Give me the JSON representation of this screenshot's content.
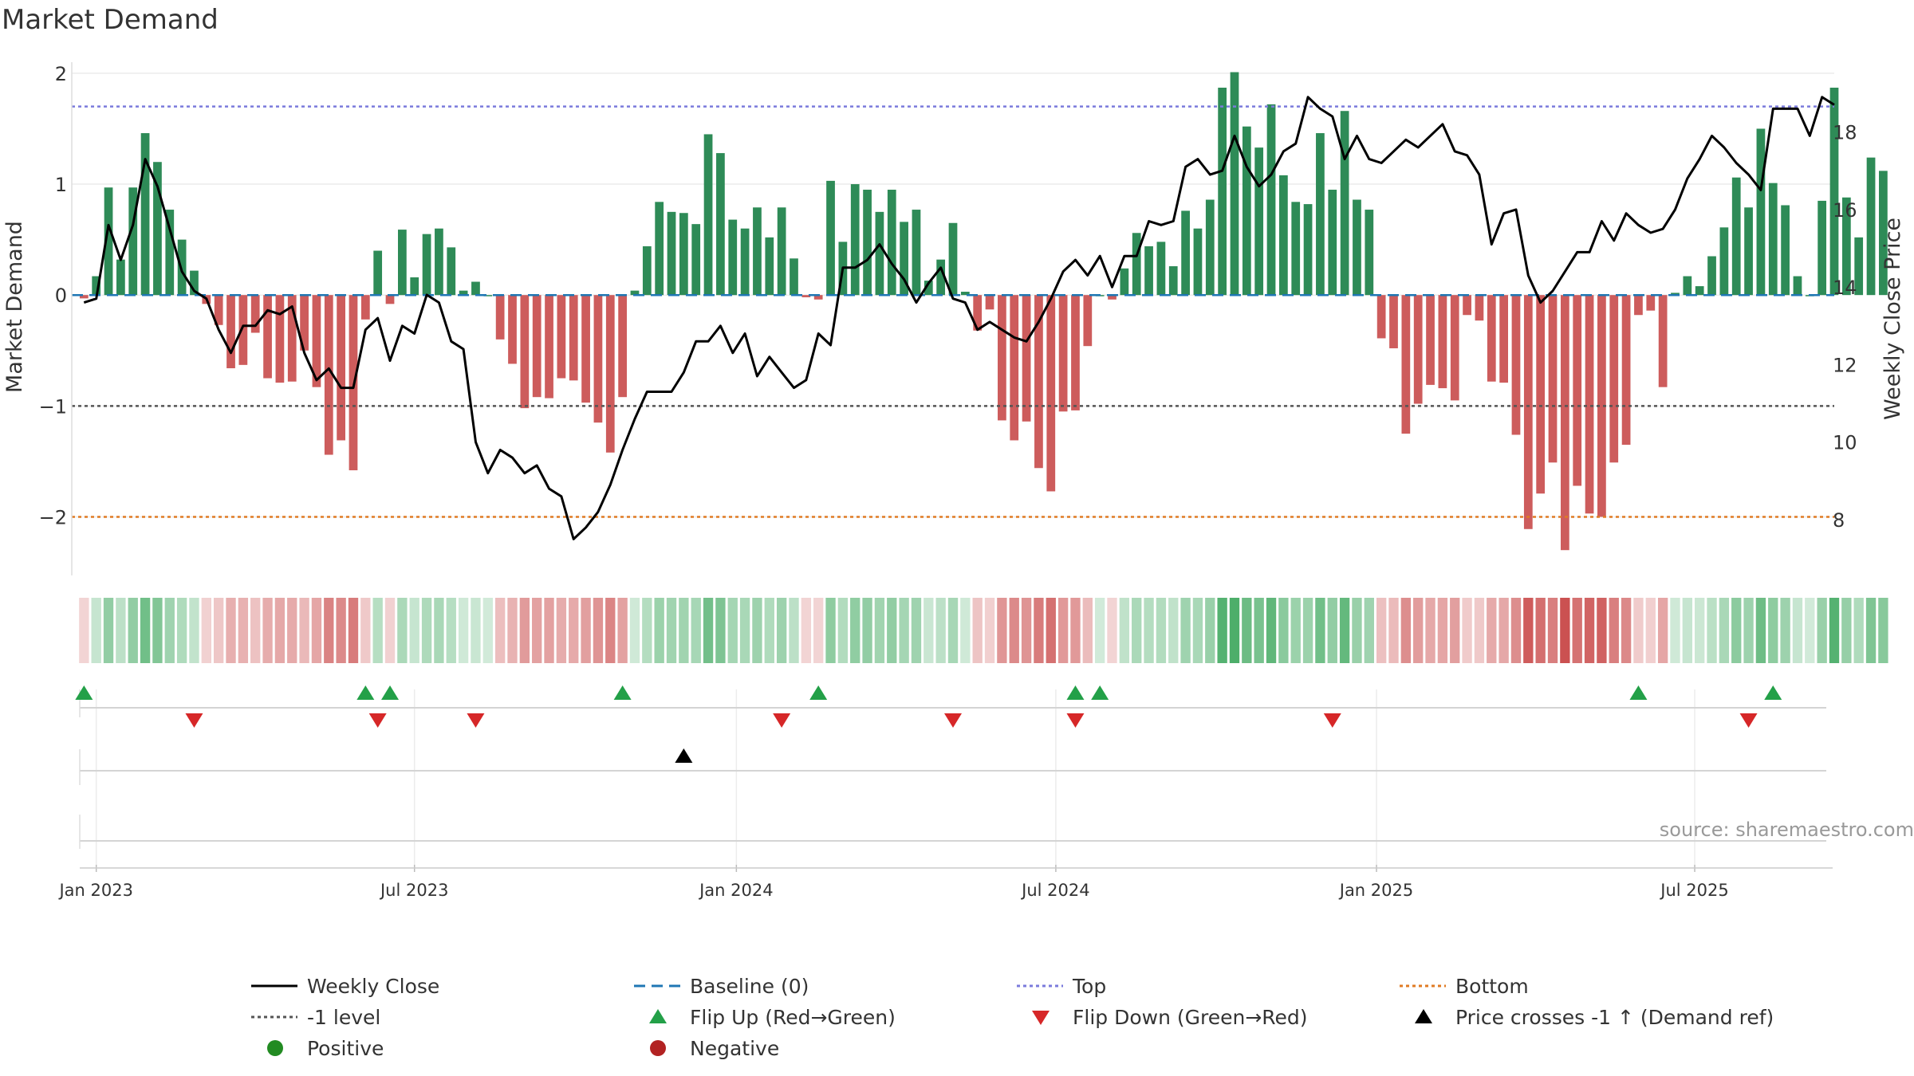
{
  "chart_data": {
    "type": "bar",
    "title": "Market Demand",
    "ylabel": "Market Demand",
    "y2label": "Weekly Close Price",
    "ylim": [
      -2.55,
      2.1
    ],
    "y2lim": [
      6.5,
      19.8
    ],
    "yticks": [
      -2,
      -1,
      0,
      1,
      2
    ],
    "ytick_labels": [
      "−2",
      "−1",
      "0",
      "1",
      "2"
    ],
    "y2ticks": [
      8,
      10,
      12,
      14,
      16,
      18
    ],
    "y2tick_labels": [
      "8",
      "10",
      "12",
      "14",
      "16",
      "18"
    ],
    "x_unit": "weeks since 26 Dec 2022",
    "xlim": [
      -1,
      143
    ],
    "xticks": [
      1,
      27,
      53.3,
      79.4,
      105.6,
      131.6
    ],
    "xtick_labels": [
      "Jan 2023",
      "Jul 2023",
      "Jan 2024",
      "Jul 2024",
      "Jan 2025",
      "Jul 2025"
    ],
    "levels": [
      {
        "name": "Top",
        "value": 1.7,
        "color": "#7b7bdc"
      },
      {
        "name": "-1 level",
        "value": -1,
        "color": "#555555"
      },
      {
        "name": "Bottom",
        "value": -2,
        "color": "#e07b24"
      },
      {
        "name": "Baseline (0)",
        "value": 0,
        "color": "#1f77b4"
      }
    ],
    "demand": [
      -0.03,
      0.17,
      0.97,
      0.32,
      0.97,
      1.46,
      1.2,
      0.77,
      0.5,
      0.22,
      -0.08,
      -0.27,
      -0.66,
      -0.63,
      -0.34,
      -0.75,
      -0.79,
      -0.78,
      -0.5,
      -0.83,
      -1.44,
      -1.31,
      -1.58,
      -0.22,
      0.4,
      -0.08,
      0.59,
      0.16,
      0.55,
      0.6,
      0.43,
      0.04,
      0.12,
      0,
      -0.4,
      -0.62,
      -1.02,
      -0.92,
      -0.93,
      -0.75,
      -0.77,
      -0.97,
      -1.15,
      -1.42,
      -0.92,
      0.04,
      0.44,
      0.84,
      0.75,
      0.74,
      0.64,
      1.45,
      1.28,
      0.68,
      0.6,
      0.79,
      0.52,
      0.79,
      0.33,
      -0.02,
      -0.04,
      1.03,
      0.48,
      1.0,
      0.95,
      0.75,
      0.95,
      0.66,
      0.77,
      0.13,
      0.32,
      0.65,
      0.03,
      -0.32,
      -0.13,
      -1.13,
      -1.31,
      -1.14,
      -1.56,
      -1.77,
      -1.05,
      -1.04,
      -0.46,
      0,
      -0.04,
      0.24,
      0.56,
      0.44,
      0.48,
      0.26,
      0.76,
      0.6,
      0.86,
      1.87,
      2.01,
      1.52,
      1.33,
      1.72,
      1.08,
      0.84,
      0.82,
      1.46,
      0.95,
      1.66,
      0.86,
      0.77,
      -0.39,
      -0.48,
      -1.25,
      -0.98,
      -0.81,
      -0.84,
      -0.95,
      -0.18,
      -0.23,
      -0.78,
      -0.79,
      -1.26,
      -2.11,
      -1.79,
      -1.51,
      -2.3,
      -1.72,
      -1.97,
      -2.0,
      -1.51,
      -1.35,
      -0.18,
      -0.14,
      -0.83,
      0.02,
      0.17,
      0.08,
      0.35,
      0.61,
      1.06,
      0.79,
      1.5,
      1.01,
      0.81,
      0.17,
      0,
      0.85,
      1.87,
      0.88,
      0.52,
      1.24,
      1.12
    ],
    "close": [
      13.6,
      13.7,
      15.6,
      14.7,
      15.6,
      17.3,
      16.6,
      15.5,
      14.4,
      13.9,
      13.7,
      12.9,
      12.3,
      13.0,
      13.0,
      13.4,
      13.3,
      13.5,
      12.3,
      11.6,
      11.9,
      11.4,
      11.4,
      12.9,
      13.2,
      12.1,
      13.0,
      12.8,
      13.8,
      13.6,
      12.6,
      12.4,
      10.0,
      9.2,
      9.8,
      9.6,
      9.2,
      9.4,
      8.8,
      8.6,
      7.5,
      7.8,
      8.2,
      8.9,
      9.8,
      10.6,
      11.3,
      11.3,
      11.3,
      11.8,
      12.6,
      12.6,
      13.0,
      12.3,
      12.8,
      11.7,
      12.2,
      11.8,
      11.4,
      11.6,
      12.8,
      12.5,
      14.5,
      14.5,
      14.7,
      15.1,
      14.6,
      14.2,
      13.6,
      14.1,
      14.5,
      13.7,
      13.6,
      12.9,
      13.1,
      12.9,
      12.7,
      12.6,
      13.1,
      13.7,
      14.4,
      14.7,
      14.3,
      14.8,
      14.0,
      14.8,
      14.8,
      15.7,
      15.6,
      15.7,
      17.1,
      17.3,
      16.9,
      17.0,
      17.9,
      17.1,
      16.6,
      16.9,
      17.5,
      17.7,
      18.9,
      18.6,
      18.4,
      17.3,
      17.9,
      17.3,
      17.2,
      17.5,
      17.8,
      17.6,
      17.9,
      18.2,
      17.5,
      17.4,
      16.9,
      15.1,
      15.9,
      16.0,
      14.3,
      13.6,
      13.9,
      14.4,
      14.9,
      14.9,
      15.7,
      15.2,
      15.9,
      15.6,
      15.4,
      15.5,
      16.0,
      16.8,
      17.3,
      17.9,
      17.6,
      17.2,
      16.9,
      16.5,
      18.6,
      18.6,
      18.6,
      17.9,
      18.9,
      18.7
    ],
    "flip_up_weeks": [
      0,
      23,
      25,
      44,
      60,
      81,
      83,
      127,
      138
    ],
    "flip_down_weeks": [
      9,
      24,
      32,
      57,
      71,
      81,
      102,
      136
    ],
    "price_cross_weeks": [
      49
    ],
    "positive_color": "#2e8b57",
    "negative_color": "#cd5c5c",
    "flip_up_color": "#23a048",
    "flip_down_color": "#d62728",
    "line_color": "#000000",
    "legend": [
      {
        "label": "Weekly Close",
        "symbol": "line",
        "color": "#000000"
      },
      {
        "label": "Baseline (0)",
        "symbol": "dash",
        "color": "#1f77b4"
      },
      {
        "label": "Top",
        "symbol": "dot",
        "color": "#7b7bdc"
      },
      {
        "label": "Bottom",
        "symbol": "dot",
        "color": "#e07b24"
      },
      {
        "label": "-1 level",
        "symbol": "dot",
        "color": "#555555"
      },
      {
        "label": "Flip Up (Red→Green)",
        "symbol": "triangle-up",
        "color": "#23a048"
      },
      {
        "label": "Flip Down (Green→Red)",
        "symbol": "triangle-down",
        "color": "#d62728"
      },
      {
        "label": "Price crosses -1 ↑ (Demand ref)",
        "symbol": "triangle-up",
        "color": "#000000"
      },
      {
        "label": "Positive",
        "symbol": "circle",
        "color": "#228b22"
      },
      {
        "label": "Negative",
        "symbol": "circle",
        "color": "#b22222"
      }
    ],
    "legend_placement": "bottom"
  },
  "source_note": "source: sharemaestro.com"
}
